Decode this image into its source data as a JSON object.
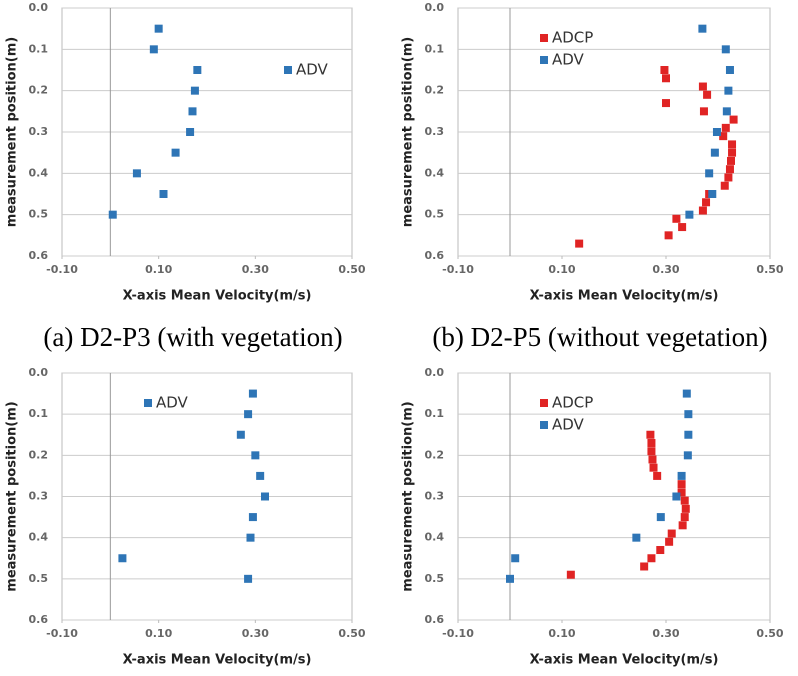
{
  "chart_data": [
    {
      "type": "scatter",
      "caption": "(a) D2-P3 (with vegetation)",
      "xlabel": "X-axis Mean Velocity(m/s)",
      "ylabel": "measurement position(m)",
      "xlim": [
        -0.1,
        0.5
      ],
      "xticks": [
        {
          "value": -0.1,
          "label": "-0.10"
        },
        {
          "value": 0.1,
          "label": "0.10"
        },
        {
          "value": 0.3,
          "label": "0.30"
        },
        {
          "value": 0.5,
          "label": "0.50"
        }
      ],
      "ylim": [
        0.6,
        0
      ],
      "yticks": [
        {
          "value": 0,
          "label": "0.0"
        },
        0.1,
        0.2,
        0.3,
        0.4,
        0.5,
        0.6
      ],
      "grid": true,
      "y_axis_at": 0,
      "legend_loc": "upper right",
      "series": [
        {
          "name": "ADV",
          "color": "#2e75b6",
          "x": [
            0.1,
            0.09,
            0.18,
            0.175,
            0.17,
            0.165,
            0.135,
            0.055,
            0.11,
            0.005
          ],
          "y": [
            0.05,
            0.1,
            0.15,
            0.2,
            0.25,
            0.3,
            0.35,
            0.4,
            0.45,
            0.5
          ]
        }
      ]
    },
    {
      "type": "scatter",
      "caption": "(b) D2-P5 (without vegetation)",
      "xlabel": "X-axis Mean Velocity(m/s)",
      "ylabel": "measurement position(m)",
      "xlim": [
        -0.1,
        0.5
      ],
      "xticks": [
        {
          "value": -0.1,
          "label": "-0.10"
        },
        {
          "value": 0.1,
          "label": "0.10"
        },
        {
          "value": 0.3,
          "label": "0.30"
        },
        {
          "value": 0.5,
          "label": "0.50"
        }
      ],
      "ylim": [
        0.6,
        0
      ],
      "yticks": [
        {
          "value": 0,
          "label": "0.0"
        },
        0.1,
        0.2,
        0.3,
        0.4,
        0.5,
        0.6
      ],
      "grid": true,
      "y_axis_at": 0,
      "legend_loc": "upper left",
      "series": [
        {
          "name": "ADCP",
          "color": "#e02424",
          "x": [
            0.297,
            0.3,
            0.371,
            0.379,
            0.3,
            0.373,
            0.43,
            0.415,
            0.41,
            0.427,
            0.427,
            0.425,
            0.423,
            0.42,
            0.413,
            0.383,
            0.377,
            0.371,
            0.32,
            0.331,
            0.305,
            0.133
          ],
          "y": [
            0.15,
            0.17,
            0.19,
            0.21,
            0.23,
            0.25,
            0.27,
            0.29,
            0.31,
            0.33,
            0.35,
            0.37,
            0.39,
            0.41,
            0.43,
            0.45,
            0.47,
            0.49,
            0.51,
            0.53,
            0.55,
            0.57
          ]
        },
        {
          "name": "ADV",
          "color": "#2e75b6",
          "x": [
            0.37,
            0.415,
            0.423,
            0.42,
            0.417,
            0.398,
            0.394,
            0.383,
            0.389,
            0.345
          ],
          "y": [
            0.05,
            0.1,
            0.15,
            0.2,
            0.25,
            0.3,
            0.35,
            0.4,
            0.45,
            0.5
          ]
        }
      ]
    },
    {
      "type": "scatter",
      "xlabel": "X-axis Mean Velocity(m/s)",
      "ylabel": "measurement position(m)",
      "xlim": [
        -0.1,
        0.5
      ],
      "xticks": [
        {
          "value": -0.1,
          "label": "-0.10"
        },
        {
          "value": 0.1,
          "label": "0.10"
        },
        {
          "value": 0.3,
          "label": "0.30"
        },
        {
          "value": 0.5,
          "label": "0.50"
        }
      ],
      "ylim": [
        0.6,
        0
      ],
      "yticks": [
        {
          "value": 0,
          "label": "0.0"
        },
        0.1,
        0.2,
        0.3,
        0.4,
        0.5,
        0.6
      ],
      "grid": true,
      "y_axis_at": 0,
      "legend_loc": "upper left",
      "series": [
        {
          "name": "ADV",
          "color": "#2e75b6",
          "x": [
            0.295,
            0.285,
            0.27,
            0.3,
            0.31,
            0.32,
            0.295,
            0.29,
            0.025,
            0.285
          ],
          "y": [
            0.05,
            0.1,
            0.15,
            0.2,
            0.25,
            0.3,
            0.35,
            0.4,
            0.45,
            0.5
          ]
        }
      ]
    },
    {
      "type": "scatter",
      "xlabel": "X-axis Mean Velocity(m/s)",
      "ylabel": "measurement position(m)",
      "xlim": [
        -0.1,
        0.5
      ],
      "xticks": [
        {
          "value": -0.1,
          "label": "-0.10"
        },
        {
          "value": 0.1,
          "label": "0.10"
        },
        {
          "value": 0.3,
          "label": "0.30"
        },
        {
          "value": 0.5,
          "label": "0.50"
        }
      ],
      "ylim": [
        0.6,
        0
      ],
      "yticks": [
        {
          "value": 0,
          "label": "0.0"
        },
        0.1,
        0.2,
        0.3,
        0.4,
        0.5,
        0.6
      ],
      "grid": true,
      "y_axis_at": 0,
      "legend_loc": "upper left",
      "series": [
        {
          "name": "ADCP",
          "color": "#e02424",
          "x": [
            0.27,
            0.272,
            0.272,
            0.274,
            0.276,
            0.283,
            0.33,
            0.33,
            0.336,
            0.338,
            0.336,
            0.332,
            0.311,
            0.306,
            0.289,
            0.272,
            0.258,
            0.117
          ],
          "y": [
            0.15,
            0.17,
            0.19,
            0.21,
            0.23,
            0.25,
            0.27,
            0.29,
            0.31,
            0.33,
            0.35,
            0.37,
            0.39,
            0.41,
            0.43,
            0.45,
            0.47,
            0.49
          ]
        },
        {
          "name": "ADV",
          "color": "#2e75b6",
          "x": [
            0.34,
            0.343,
            0.343,
            0.342,
            0.33,
            0.32,
            0.29,
            0.243,
            0.01,
            0.0
          ],
          "y": [
            0.05,
            0.1,
            0.15,
            0.2,
            0.25,
            0.3,
            0.35,
            0.4,
            0.45,
            0.5
          ]
        }
      ]
    }
  ]
}
